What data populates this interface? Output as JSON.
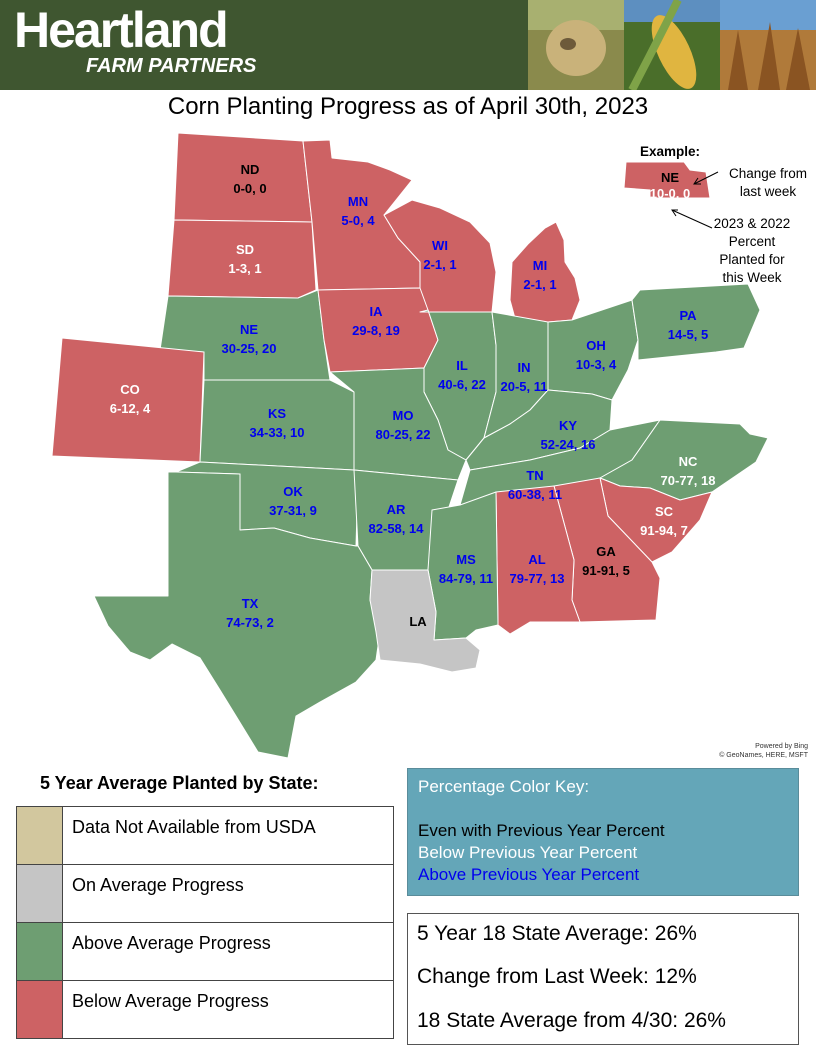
{
  "header": {
    "brand": "Heartland",
    "brand_sub": "FARM PARTNERS"
  },
  "title": "Corn Planting Progress as of April 30th, 2023",
  "colors": {
    "above": "#6e9e72",
    "below": "#cd6264",
    "average": "#c5c5c5",
    "na": "#d2c79e",
    "even_text": "#000000",
    "below_text": "#ffffff",
    "above_text": "#0000ee"
  },
  "states": [
    {
      "abbr": "ND",
      "values": "0-0, 0",
      "status": "below",
      "text": "even"
    },
    {
      "abbr": "SD",
      "values": "1-3, 1",
      "status": "below",
      "text": "below"
    },
    {
      "abbr": "MN",
      "values": "5-0, 4",
      "status": "below",
      "text": "above"
    },
    {
      "abbr": "WI",
      "values": "2-1, 1",
      "status": "below",
      "text": "above"
    },
    {
      "abbr": "MI",
      "values": "2-1, 1",
      "status": "below",
      "text": "above"
    },
    {
      "abbr": "NE",
      "values": "30-25, 20",
      "status": "above",
      "text": "above"
    },
    {
      "abbr": "IA",
      "values": "29-8, 19",
      "status": "below",
      "text": "above"
    },
    {
      "abbr": "IL",
      "values": "40-6, 22",
      "status": "above",
      "text": "above"
    },
    {
      "abbr": "IN",
      "values": "20-5, 11",
      "status": "above",
      "text": "above"
    },
    {
      "abbr": "OH",
      "values": "10-3, 4",
      "status": "above",
      "text": "above"
    },
    {
      "abbr": "PA",
      "values": "14-5, 5",
      "status": "above",
      "text": "above"
    },
    {
      "abbr": "CO",
      "values": "6-12, 4",
      "status": "below",
      "text": "below"
    },
    {
      "abbr": "KS",
      "values": "34-33, 10",
      "status": "above",
      "text": "above"
    },
    {
      "abbr": "MO",
      "values": "80-25, 22",
      "status": "above",
      "text": "above"
    },
    {
      "abbr": "KY",
      "values": "52-24, 16",
      "status": "above",
      "text": "above"
    },
    {
      "abbr": "OK",
      "values": "37-31, 9",
      "status": "above",
      "text": "above"
    },
    {
      "abbr": "AR",
      "values": "82-58, 14",
      "status": "above",
      "text": "above"
    },
    {
      "abbr": "TN",
      "values": "60-38, 11",
      "status": "above",
      "text": "above"
    },
    {
      "abbr": "NC",
      "values": "70-77, 18",
      "status": "above",
      "text": "below"
    },
    {
      "abbr": "SC",
      "values": "91-94, 7",
      "status": "below",
      "text": "below"
    },
    {
      "abbr": "GA",
      "values": "91-91, 5",
      "status": "below",
      "text": "even"
    },
    {
      "abbr": "AL",
      "values": "79-77, 13",
      "status": "below",
      "text": "above"
    },
    {
      "abbr": "MS",
      "values": "84-79, 11",
      "status": "above",
      "text": "above"
    },
    {
      "abbr": "TX",
      "values": "74-73, 2",
      "status": "above",
      "text": "above"
    },
    {
      "abbr": "LA",
      "values": "",
      "status": "average",
      "text": "even"
    }
  ],
  "example": {
    "heading": "Example:",
    "state": "NE",
    "values": "10-0, 0",
    "note1": [
      "Change from",
      "last week"
    ],
    "note2": [
      "2023 & 2022",
      "Percent",
      "Planted for",
      "this Week"
    ]
  },
  "attribution": [
    "Powered by Bing",
    "© GeoNames, HERE, MSFT"
  ],
  "legend": {
    "title": "5 Year Average Planted by State:",
    "items": [
      {
        "label": "Data Not Available from USDA",
        "color": "#d2c79e"
      },
      {
        "label": "On Average Progress",
        "color": "#c5c5c5"
      },
      {
        "label": "Above Average Progress",
        "color": "#6e9e72"
      },
      {
        "label": "Below Average Progress",
        "color": "#cd6264"
      }
    ]
  },
  "color_key": {
    "title": "Percentage Color Key:",
    "lines": [
      {
        "text": "Even with Previous Year Percent",
        "color": "#000000"
      },
      {
        "text": "Below Previous Year Percent",
        "color": "#ffffff"
      },
      {
        "text": "Above Previous Year Percent",
        "color": "#0000ee"
      }
    ]
  },
  "stats": [
    "5 Year 18 State Average: 26%",
    "Change from Last Week: 12%",
    "18 State Average from 4/30: 26%"
  ]
}
